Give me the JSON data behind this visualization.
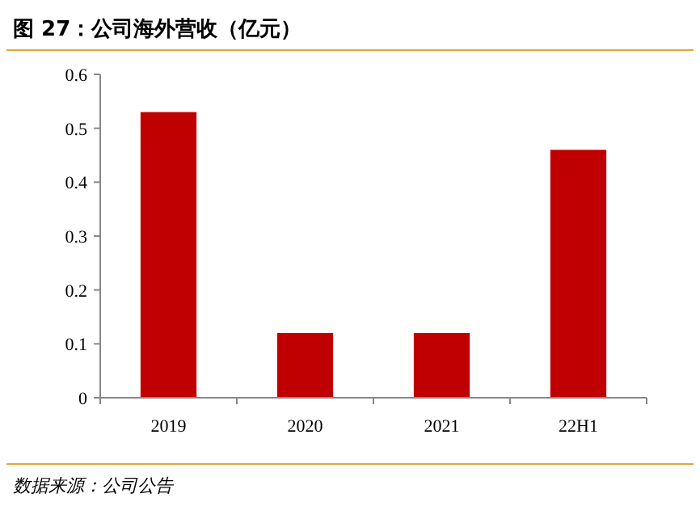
{
  "chart_data": {
    "type": "bar",
    "title": "图 27：公司海外营收（亿元）",
    "categories": [
      "2019",
      "2020",
      "2021",
      "22H1"
    ],
    "values": [
      0.53,
      0.12,
      0.12,
      0.46
    ],
    "color": "#c00000",
    "ylim": [
      0,
      0.6
    ],
    "yticks": [
      0,
      0.1,
      0.2,
      0.3,
      0.4,
      0.5,
      0.6
    ],
    "grid": false,
    "annotations": [
      "数据来源：公司公告"
    ]
  }
}
